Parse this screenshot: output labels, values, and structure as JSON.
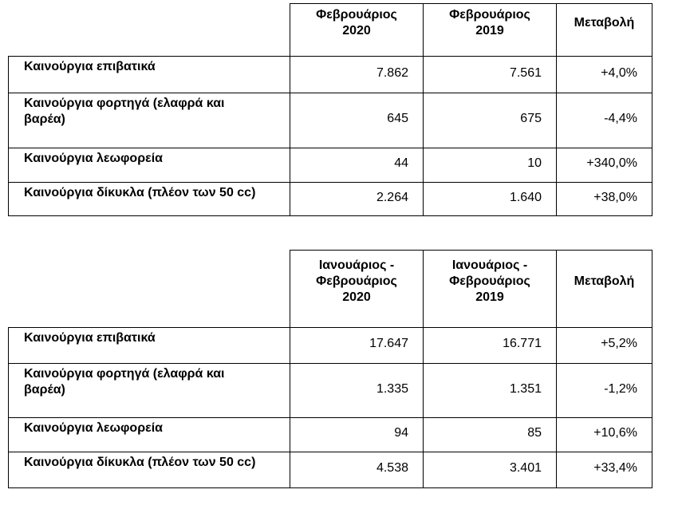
{
  "page": {
    "background_color": "#ffffff",
    "border_color": "#000000",
    "text_color": "#000000"
  },
  "tables": [
    {
      "name": "february-comparison",
      "headers": {
        "col_current": "Φεβρουάριος\n2020",
        "col_previous": "Φεβρουάριος\n2019",
        "col_change": "Μεταβολή"
      },
      "rows": [
        {
          "label": "Καινούργια επιβατικά",
          "current": "7.862",
          "previous": "7.561",
          "change": "+4,0%"
        },
        {
          "label": "Καινούργια φορτηγά (ελαφρά και\nβαρέα)",
          "current": "645",
          "previous": "675",
          "change": "-4,4%"
        },
        {
          "label": "Καινούργια λεωφορεία",
          "current": "44",
          "previous": "10",
          "change": "+340,0%"
        },
        {
          "label": "Καινούργια δίκυκλα (πλέον των 50 cc)",
          "current": "2.264",
          "previous": "1.640",
          "change": "+38,0%"
        }
      ]
    },
    {
      "name": "january-february-comparison",
      "headers": {
        "col_current": "Ιανουάριος -\nΦεβρουάριος\n2020",
        "col_previous": "Ιανουάριος -\nΦεβρουάριος\n2019",
        "col_change": "Μεταβολή"
      },
      "rows": [
        {
          "label": "Καινούργια επιβατικά",
          "current": "17.647",
          "previous": "16.771",
          "change": "+5,2%"
        },
        {
          "label": "Καινούργια φορτηγά (ελαφρά και\nβαρέα)",
          "current": "1.335",
          "previous": "1.351",
          "change": "-1,2%"
        },
        {
          "label": "Καινούργια λεωφορεία",
          "current": "94",
          "previous": "85",
          "change": "+10,6%"
        },
        {
          "label": "Καινούργια δίκυκλα (πλέον των 50 cc)",
          "current": "4.538",
          "previous": "3.401",
          "change": "+33,4%"
        }
      ]
    }
  ]
}
